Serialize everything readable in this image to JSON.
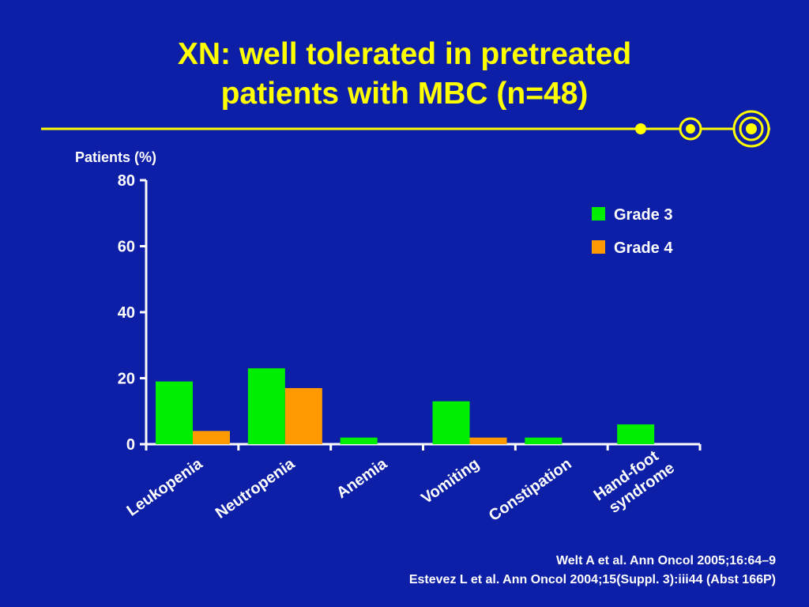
{
  "slide": {
    "title_lines": [
      "XN: well tolerated in pretreated",
      "patients with MBC (n=48)"
    ],
    "references": [
      "Welt A et al. Ann Oncol 2005;16:64–9",
      "Estevez L et al. Ann Oncol 2004;15(Suppl. 3):iii44 (Abst 166P)"
    ],
    "colors": {
      "background": "#0d1fa6",
      "title": "#ffff00",
      "text": "#ffffff"
    }
  },
  "chart_data": {
    "type": "bar",
    "title": "",
    "ylabel": "Patients (%)",
    "xlabel": "",
    "ylim": [
      0,
      80
    ],
    "yticks": [
      0,
      20,
      40,
      60,
      80
    ],
    "categories": [
      [
        "Leukopenia"
      ],
      [
        "Neutropenia"
      ],
      [
        "Anemia"
      ],
      [
        "Vomiting"
      ],
      [
        "Constipation"
      ],
      [
        "Hand-foot",
        "syndrome"
      ]
    ],
    "series": [
      {
        "name": "Grade 3",
        "color": "#00ee00",
        "values": [
          19,
          23,
          2,
          13,
          2,
          6
        ]
      },
      {
        "name": "Grade 4",
        "color": "#ff9900",
        "values": [
          4,
          17,
          0,
          2,
          0,
          0
        ]
      }
    ],
    "legend": "top-right",
    "grid": false
  }
}
